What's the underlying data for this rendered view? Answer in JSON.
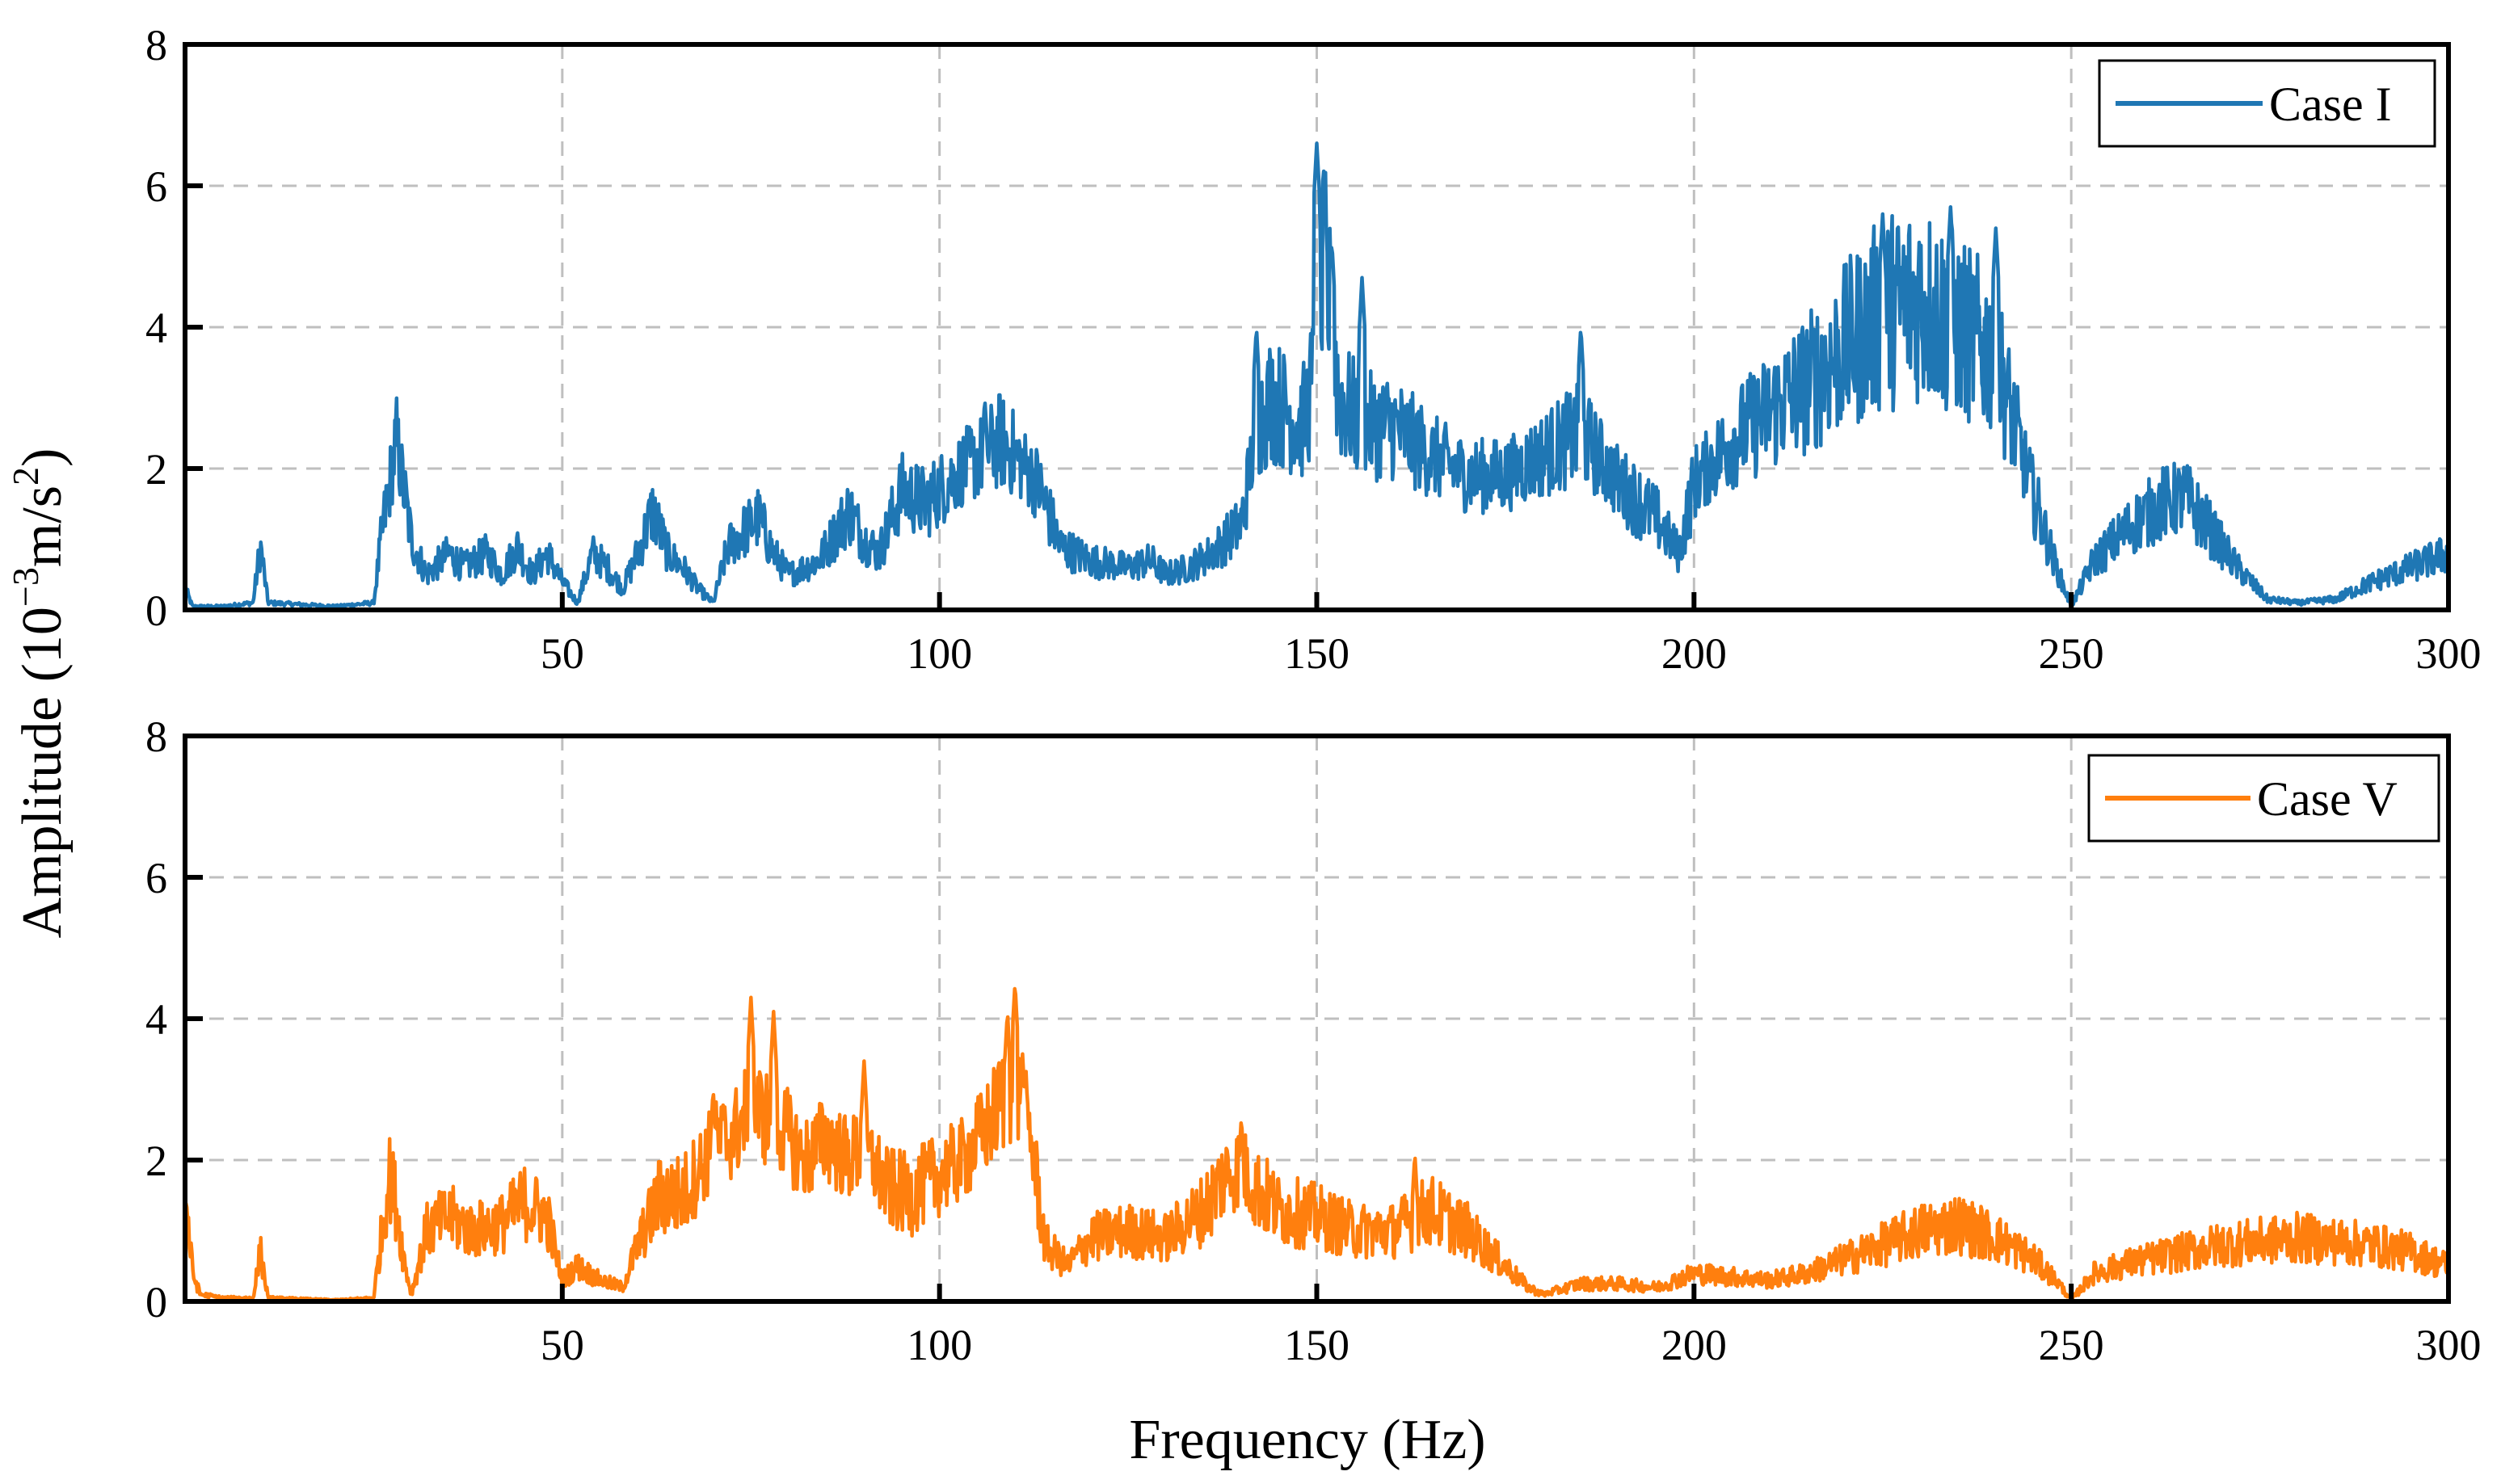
{
  "figure": {
    "ylabel_prefix": "Amplitude (10",
    "ylabel_exp1": "−3",
    "ylabel_mid": "m/s",
    "ylabel_exp2": "2",
    "ylabel_suffix": ")",
    "xlabel": "Frequency (Hz)"
  },
  "chart_data": [
    {
      "type": "line",
      "xlim": [
        0,
        300
      ],
      "ylim": [
        0,
        8
      ],
      "xticks": [
        50,
        100,
        150,
        200,
        250,
        300
      ],
      "yticks": [
        0,
        2,
        4,
        6,
        8
      ],
      "xtick_labels": [
        "50",
        "100",
        "150",
        "200",
        "250",
        "300"
      ],
      "ytick_labels": [
        "0",
        "2",
        "4",
        "6",
        "8"
      ],
      "grid": true,
      "legend_position": "top-right",
      "xlabel": "",
      "ylabel": "Amplitude (10^-3 m/s^2)",
      "series": [
        {
          "name": "Case I",
          "color": "#1f77b4",
          "noise": [
            0.45,
            0.8,
            0.8
          ],
          "x": [
            0,
            1,
            5,
            9,
            10,
            11,
            20,
            25,
            26,
            28,
            30,
            32,
            35,
            37,
            40,
            42,
            44,
            46,
            48,
            50,
            52,
            54,
            56,
            58,
            60,
            62,
            64,
            66,
            68,
            70,
            72,
            74,
            76,
            78,
            80,
            84,
            88,
            90,
            92,
            95,
            98,
            100,
            103,
            106,
            108,
            110,
            113,
            116,
            120,
            125,
            128,
            130,
            133,
            136,
            140,
            142,
            144,
            146,
            148,
            150,
            151,
            153,
            156,
            160,
            165,
            170,
            175,
            180,
            185,
            190,
            195,
            198,
            200,
            205,
            210,
            215,
            220,
            225,
            230,
            235,
            240,
            242,
            245,
            248,
            250,
            253,
            258,
            262,
            265,
            268,
            272,
            276,
            280,
            285,
            290,
            295,
            300
          ],
          "y": [
            0.3,
            0.05,
            0.05,
            0.1,
            0.9,
            0.1,
            0.05,
            0.1,
            1.0,
            2.4,
            1.0,
            0.5,
            0.8,
            0.6,
            0.8,
            0.5,
            0.9,
            0.5,
            0.8,
            0.4,
            0.1,
            0.8,
            0.6,
            0.3,
            0.8,
            1.4,
            0.8,
            0.6,
            0.3,
            0.1,
            0.9,
            1.1,
            1.3,
            0.8,
            0.5,
            0.7,
            1.4,
            1.0,
            0.8,
            1.7,
            1.5,
            1.7,
            2.0,
            2.2,
            2.4,
            2.2,
            1.8,
            0.9,
            0.7,
            0.6,
            0.7,
            0.5,
            0.6,
            0.8,
            1.2,
            2.6,
            3.0,
            2.8,
            2.6,
            3.4,
            4.8,
            3.0,
            2.6,
            2.6,
            2.2,
            1.9,
            1.9,
            2.2,
            2.5,
            1.8,
            1.3,
            0.8,
            1.8,
            2.4,
            2.8,
            3.2,
            3.7,
            4.2,
            4.4,
            4.0,
            3.6,
            2.8,
            1.6,
            0.6,
            0.05,
            0.7,
            1.2,
            1.5,
            1.6,
            1.2,
            0.6,
            0.15,
            0.1,
            0.15,
            0.4,
            0.6,
            0.8
          ],
          "peaks": [
            {
              "x": 150,
              "y": 6.6
            },
            {
              "x": 142,
              "y": 4.0
            },
            {
              "x": 152,
              "y": 5.2
            },
            {
              "x": 156,
              "y": 4.7
            },
            {
              "x": 185,
              "y": 4.0
            },
            {
              "x": 225,
              "y": 5.6
            },
            {
              "x": 234,
              "y": 5.7
            },
            {
              "x": 240,
              "y": 5.4
            },
            {
              "x": 106,
              "y": 3.0
            }
          ]
        }
      ]
    },
    {
      "type": "line",
      "xlim": [
        0,
        300
      ],
      "ylim": [
        0,
        8
      ],
      "xticks": [
        50,
        100,
        150,
        200,
        250,
        300
      ],
      "yticks": [
        0,
        2,
        4,
        6,
        8
      ],
      "xtick_labels": [
        "50",
        "100",
        "150",
        "200",
        "250",
        "300"
      ],
      "ytick_labels": [
        "0",
        "2",
        "4",
        "6",
        "8"
      ],
      "grid": true,
      "legend_position": "top-right",
      "xlabel": "Frequency (Hz)",
      "ylabel": "Amplitude (10^-3 m/s^2)",
      "series": [
        {
          "name": "Case V",
          "color": "#ff7f0e",
          "noise": [
            0.5,
            0.8,
            0.35
          ],
          "x": [
            0,
            1,
            2,
            5,
            9,
            10,
            11,
            20,
            25,
            26,
            27,
            28,
            29,
            30,
            32,
            35,
            38,
            42,
            45,
            48,
            50,
            52,
            55,
            58,
            60,
            63,
            66,
            70,
            73,
            75,
            77,
            79,
            82,
            85,
            88,
            90,
            93,
            96,
            100,
            103,
            106,
            108,
            110,
            112,
            114,
            117,
            120,
            125,
            130,
            135,
            138,
            140,
            142,
            145,
            150,
            155,
            160,
            165,
            170,
            175,
            178,
            180,
            185,
            190,
            195,
            200,
            205,
            210,
            215,
            220,
            225,
            230,
            235,
            240,
            245,
            248,
            250,
            253,
            258,
            265,
            270,
            275,
            280,
            285,
            290,
            295,
            300
          ],
          "y": [
            1.6,
            0.4,
            0.1,
            0.05,
            0.05,
            0.7,
            0.05,
            0.02,
            0.05,
            0.9,
            1.8,
            1.4,
            0.6,
            0.1,
            1.0,
            1.2,
            1.0,
            1.1,
            1.4,
            1.2,
            0.3,
            0.5,
            0.3,
            0.2,
            0.8,
            1.5,
            1.5,
            2.2,
            2.4,
            2.8,
            2.6,
            2.5,
            2.0,
            2.3,
            2.0,
            2.2,
            1.6,
            1.5,
            1.8,
            2.0,
            2.4,
            2.8,
            3.0,
            2.4,
            0.8,
            0.5,
            0.9,
            1.0,
            0.9,
            1.3,
            1.8,
            1.9,
            1.6,
            1.3,
            1.2,
            1.0,
            1.0,
            1.3,
            1.0,
            0.5,
            0.2,
            0.1,
            0.25,
            0.25,
            0.2,
            0.4,
            0.35,
            0.3,
            0.4,
            0.6,
            0.8,
            1.0,
            1.1,
            0.9,
            0.6,
            0.3,
            0.02,
            0.4,
            0.55,
            0.7,
            0.8,
            0.85,
            0.9,
            0.85,
            0.8,
            0.7,
            0.5
          ],
          "peaks": [
            {
              "x": 75,
              "y": 4.3
            },
            {
              "x": 78,
              "y": 4.1
            },
            {
              "x": 90,
              "y": 3.4
            },
            {
              "x": 109,
              "y": 4.1
            },
            {
              "x": 110,
              "y": 4.5
            },
            {
              "x": 111,
              "y": 3.5
            },
            {
              "x": 140,
              "y": 2.6
            },
            {
              "x": 163,
              "y": 2.1
            },
            {
              "x": 70,
              "y": 3.0
            }
          ]
        }
      ]
    }
  ]
}
